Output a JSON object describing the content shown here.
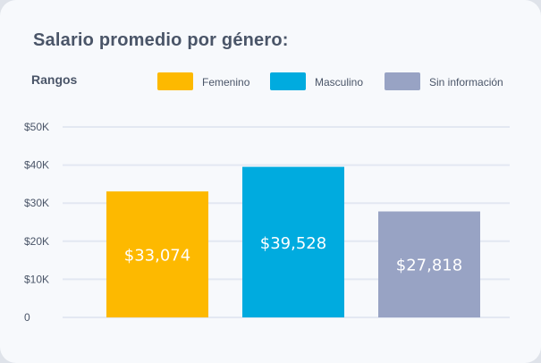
{
  "card": {
    "title": "Salario promedio por género:",
    "legend_title": "Rangos"
  },
  "chart_data": {
    "type": "bar",
    "title": "Salario promedio por género:",
    "legend_title": "Rangos",
    "categories": [
      "Femenino",
      "Masculino",
      "Sin información"
    ],
    "values": [
      33074,
      39528,
      27818
    ],
    "value_labels": [
      "$33,074",
      "$39,528",
      "$27,818"
    ],
    "colors": [
      "#fdb900",
      "#00abdf",
      "#98a3c4"
    ],
    "y_ticks": [
      0,
      10000,
      20000,
      30000,
      40000,
      50000
    ],
    "y_tick_labels": [
      "0",
      "$10K",
      "$20K",
      "$30K",
      "$40K",
      "$50K"
    ],
    "ylim": [
      0,
      50000
    ],
    "grid": true,
    "legend_position": "top"
  }
}
